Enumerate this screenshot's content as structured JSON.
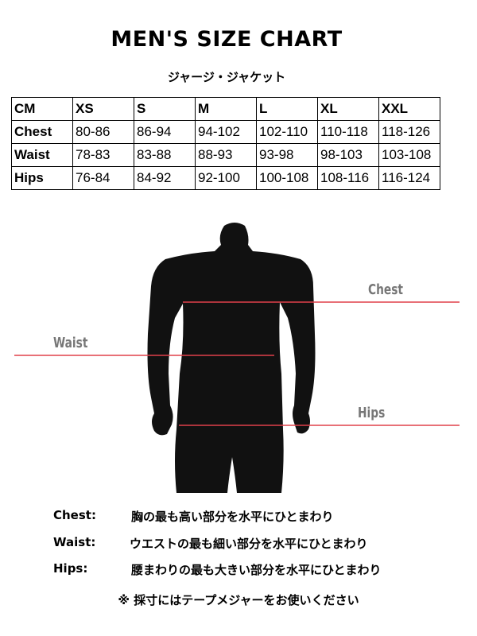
{
  "title": "MEN'S SIZE CHART",
  "subtitle": "ジャージ・ジャケット",
  "table": {
    "header": [
      "CM",
      "XS",
      "S",
      "M",
      "L",
      "XL",
      "XXL"
    ],
    "rows": [
      [
        "Chest",
        "80-86",
        "86-94",
        "94-102",
        "102-110",
        "110-118",
        "118-126"
      ],
      [
        "Waist",
        "78-83",
        "83-88",
        "88-93",
        "93-98",
        "98-103",
        "103-108"
      ],
      [
        "Hips",
        "76-84",
        "84-92",
        "92-100",
        "100-108",
        "108-116",
        "116-124"
      ]
    ]
  },
  "figure": {
    "labels": {
      "chest": "Chest",
      "waist": "Waist",
      "hips": "Hips"
    },
    "line_color": "#e0404a",
    "label_color": "#777777",
    "silhouette_color": "#111111"
  },
  "definitions": [
    {
      "term": "Chest:",
      "text": "胸の最も高い部分を水平にひとまわり"
    },
    {
      "term": "Waist:",
      "text": "ウエストの最も細い部分を水平にひとまわり"
    },
    {
      "term": "Hips:",
      "text": "腰まわりの最も大きい部分を水平にひとまわり"
    }
  ],
  "note": "※ 採寸にはテープメジャーをお使いください"
}
